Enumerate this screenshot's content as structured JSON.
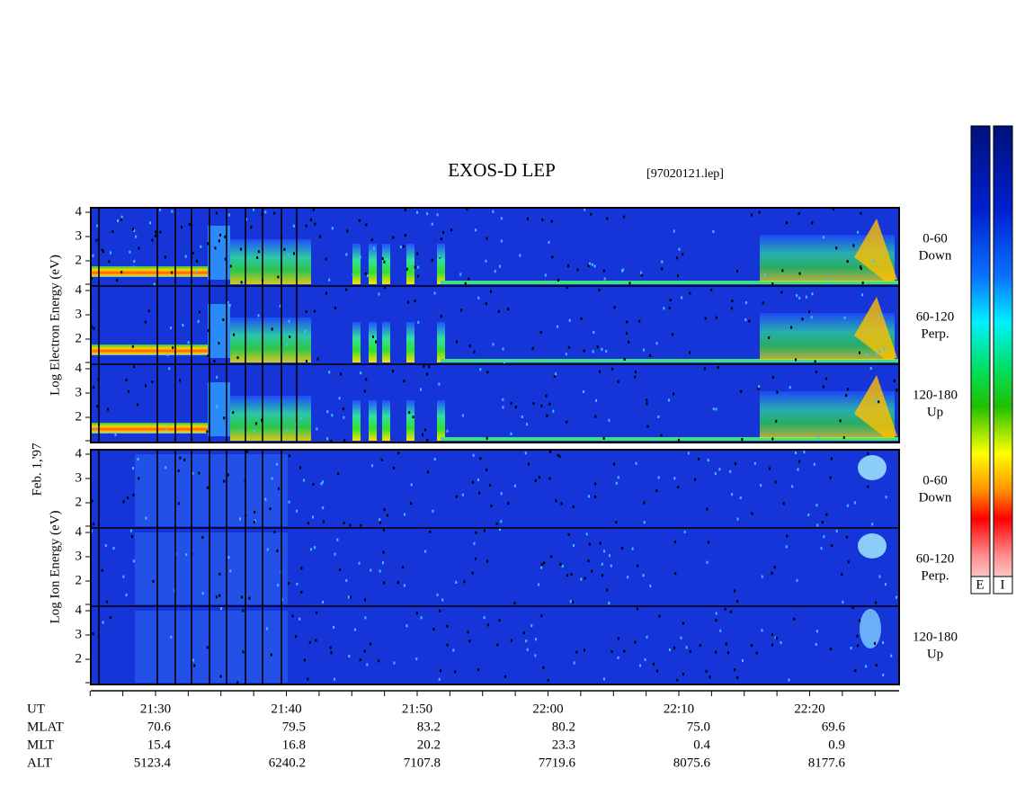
{
  "header": {
    "title": "EXOS-D LEP",
    "file": "[97020121.lep]",
    "date": "Feb. 1,'97"
  },
  "blocks": [
    {
      "axis_label": "Log Electron Energy (eV)",
      "panels": [
        {
          "range": "0-60",
          "direction": "Down"
        },
        {
          "range": "60-120",
          "direction": "Perp."
        },
        {
          "range": "120-180",
          "direction": "Up"
        }
      ]
    },
    {
      "axis_label": "Log Ion Energy (eV)",
      "panels": [
        {
          "range": "0-60",
          "direction": "Down"
        },
        {
          "range": "60-120",
          "direction": "Perp."
        },
        {
          "range": "120-180",
          "direction": "Up"
        }
      ]
    }
  ],
  "energy_ticks": [
    2,
    3,
    4
  ],
  "colorbars": [
    "E",
    "I"
  ],
  "ephemeris": {
    "rows": [
      {
        "label": "UT",
        "values": [
          "21:30",
          "21:40",
          "21:50",
          "22:00",
          "22:10",
          "22:20"
        ]
      },
      {
        "label": "MLAT",
        "values": [
          "70.6",
          "79.5",
          "83.2",
          "80.2",
          "75.0",
          "69.6"
        ]
      },
      {
        "label": "MLT",
        "values": [
          "15.4",
          "16.8",
          "20.2",
          "23.3",
          "0.4",
          "0.9"
        ]
      },
      {
        "label": "ALT",
        "values": [
          "5123.4",
          "6240.2",
          "7107.8",
          "7719.6",
          "8075.6",
          "8177.6"
        ]
      }
    ]
  }
}
